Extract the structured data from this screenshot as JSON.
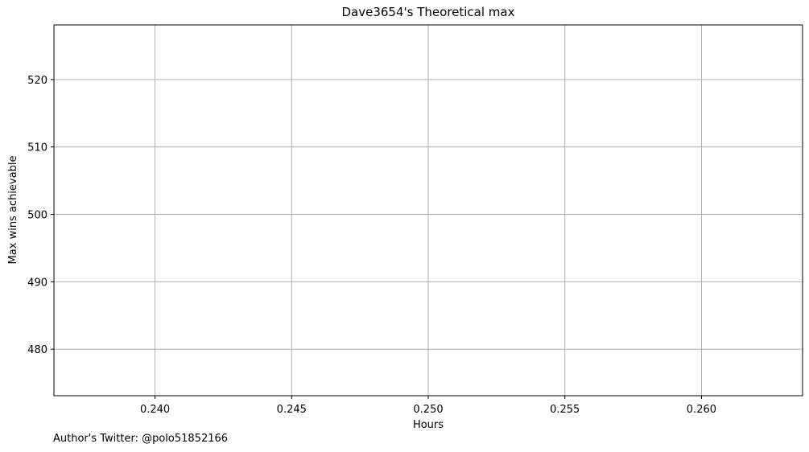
{
  "chart_data": {
    "type": "line",
    "title": "Dave3654's Theoretical max",
    "xlabel": "Hours",
    "ylabel": "Max wins achievable",
    "xlim": [
      0.2363,
      0.2637
    ],
    "ylim": [
      473.1,
      528.1
    ],
    "x_ticks": [
      0.24,
      0.245,
      0.25,
      0.255,
      0.26
    ],
    "x_tick_labels": [
      "0.240",
      "0.245",
      "0.250",
      "0.255",
      "0.260"
    ],
    "y_ticks": [
      480,
      490,
      500,
      510,
      520
    ],
    "y_tick_labels": [
      "480",
      "490",
      "500",
      "510",
      "520"
    ],
    "grid": true,
    "series": [
      {
        "x": [],
        "values": []
      }
    ],
    "colors": {
      "grid": "#b0b0b0",
      "axis": "#000000"
    }
  },
  "footer": {
    "author": "Author's Twitter: @polo51852166"
  }
}
